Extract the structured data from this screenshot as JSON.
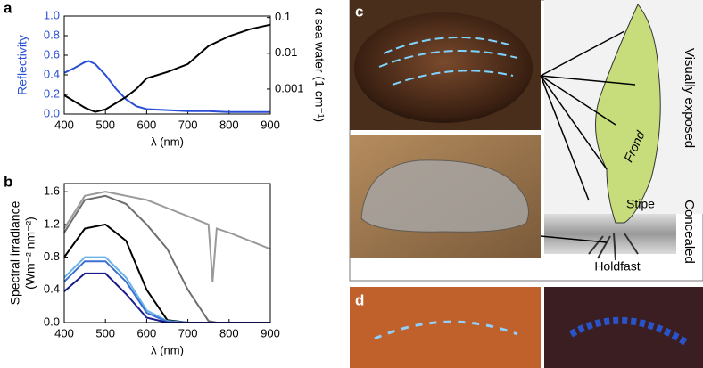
{
  "panels": {
    "a": "a",
    "b": "b",
    "c": "c",
    "d": "d"
  },
  "diagram": {
    "visually_exposed": "Visually exposed",
    "frond": "Frond",
    "stipe": "Stipe",
    "concealed": "Concealed",
    "holdfast": "Holdfast"
  },
  "chart_data": [
    {
      "type": "line",
      "xlabel": "λ (nm)",
      "ylabel": "Reflectivity",
      "y2label": "α sea water (1 cm⁻¹)",
      "x": [
        400,
        425,
        450,
        460,
        475,
        500,
        525,
        550,
        575,
        600,
        650,
        700,
        750,
        800,
        850,
        900
      ],
      "xlim": [
        400,
        900
      ],
      "xticks": [
        400,
        500,
        600,
        700,
        800,
        900
      ],
      "ylim": [
        0,
        1
      ],
      "yticks": [
        {
          "value": 0,
          "label": "0.0"
        },
        0.2,
        0.4,
        0.6,
        0.8,
        {
          "value": 1,
          "label": "1.0"
        }
      ],
      "y2lim": [
        0.0002,
        0.11
      ],
      "y2ticks": [
        0.001,
        0.01,
        0.1
      ],
      "y2log": true,
      "series": [
        {
          "color": "#2a4fd6",
          "values": [
            0.42,
            0.47,
            0.53,
            0.54,
            0.51,
            0.4,
            0.26,
            0.15,
            0.08,
            0.05,
            0.04,
            0.03,
            0.03,
            0.02,
            0.02,
            0.02
          ]
        },
        {
          "color": "#000000",
          "axis": "y2",
          "values": [
            0.00067,
            0.00045,
            0.0003,
            0.00027,
            0.00023,
            0.00027,
            0.0004,
            0.0006,
            0.001,
            0.002,
            0.003,
            0.005,
            0.016,
            0.03,
            0.047,
            0.063
          ]
        }
      ]
    },
    {
      "type": "line",
      "xlabel": "λ (nm)",
      "ylabel": [
        "Spectral irradiance",
        "(Wm⁻² nm⁻²)"
      ],
      "x": [
        400,
        450,
        500,
        550,
        600,
        650,
        700,
        750,
        760,
        770,
        800,
        850,
        900
      ],
      "xlim": [
        400,
        900
      ],
      "xticks": [
        400,
        500,
        600,
        700,
        800,
        900
      ],
      "ylim": [
        0,
        1.7
      ],
      "yticks": [
        {
          "value": 0,
          "label": "0.0"
        },
        0.4,
        0.8,
        1.2,
        1.6
      ],
      "series": [
        {
          "color": "#9a9a9a",
          "values": [
            1.15,
            1.55,
            1.6,
            1.55,
            1.5,
            1.4,
            1.3,
            1.2,
            0.5,
            1.15,
            1.1,
            1.0,
            0.9
          ]
        },
        {
          "color": "#6e6e6e",
          "values": [
            1.1,
            1.5,
            1.55,
            1.45,
            1.2,
            0.9,
            0.4,
            0.02,
            0.01,
            0,
            0,
            0,
            0
          ]
        },
        {
          "color": "#000000",
          "values": [
            0.8,
            1.15,
            1.2,
            1.0,
            0.4,
            0.03,
            0,
            0,
            0,
            0,
            0,
            0,
            0
          ]
        },
        {
          "color": "#6ab4e8",
          "values": [
            0.55,
            0.8,
            0.8,
            0.55,
            0.15,
            0.02,
            0,
            0,
            0,
            0,
            0,
            0,
            0
          ]
        },
        {
          "color": "#3b6fd1",
          "values": [
            0.5,
            0.75,
            0.75,
            0.5,
            0.12,
            0.01,
            0,
            0,
            0,
            0,
            0,
            0,
            0
          ]
        },
        {
          "color": "#1a1a8c",
          "values": [
            0.38,
            0.6,
            0.6,
            0.35,
            0.06,
            0,
            0,
            0,
            0,
            0,
            0,
            0,
            0
          ]
        }
      ]
    }
  ]
}
